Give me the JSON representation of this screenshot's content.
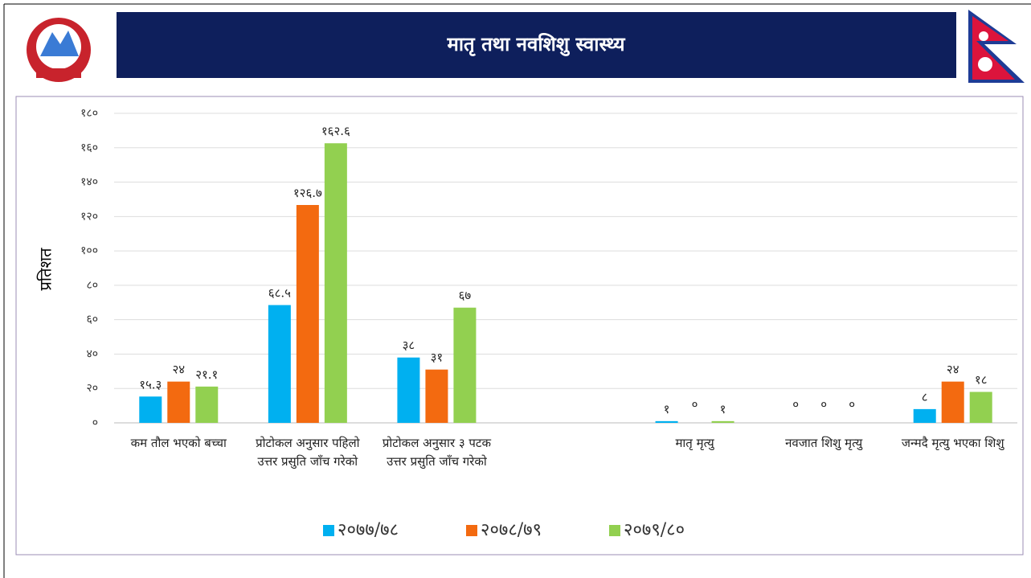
{
  "header": {
    "title": "मातृ तथा नवशिशु स्वास्थ्य"
  },
  "chart_data": {
    "type": "bar",
    "y_label": "प्रतिशत",
    "categories": [
      "कम तौल भएको बच्चा",
      "प्रोटोकल अनुसार पहिलो उत्तर प्रसुति जाँच गरेको",
      "प्रोटोकल अनुसार ३ पटक उत्तर प्रसुति जाँच गरेको",
      null,
      "मातृ मृत्यु",
      "नवजात शिशु मृत्यु",
      "जन्मदै मृत्यु भएका शिशु"
    ],
    "series": [
      {
        "name": "२०७७/७८",
        "color": "#00b0f0",
        "values": [
          15.3,
          68.5,
          38,
          null,
          1,
          0,
          8
        ],
        "value_labels": [
          "१५.३",
          "६८.५",
          "३८",
          null,
          "१",
          "०",
          "८"
        ]
      },
      {
        "name": "२०७८/७९",
        "color": "#f36a10",
        "values": [
          24,
          126.7,
          31,
          null,
          0,
          0,
          24
        ],
        "value_labels": [
          "२४",
          "१२६.७",
          "३१",
          null,
          "०",
          "०",
          "२४"
        ]
      },
      {
        "name": "२०७९/८०",
        "color": "#92d050",
        "values": [
          21.1,
          162.6,
          67,
          null,
          1,
          0,
          18
        ],
        "value_labels": [
          "२१.१",
          "१६२.६",
          "६७",
          null,
          "१",
          "०",
          "१८"
        ]
      }
    ],
    "ylim": [
      0,
      180
    ],
    "yticks": [
      {
        "value": 0,
        "label": "०"
      },
      {
        "value": 20,
        "label": "२०"
      },
      {
        "value": 40,
        "label": "४०"
      },
      {
        "value": 60,
        "label": "६०"
      },
      {
        "value": 80,
        "label": "८०"
      },
      {
        "value": 100,
        "label": "१००"
      },
      {
        "value": 120,
        "label": "१२०"
      },
      {
        "value": 140,
        "label": "१४०"
      },
      {
        "value": 160,
        "label": "१६०"
      },
      {
        "value": 180,
        "label": "१८०"
      }
    ],
    "grid": true,
    "legend": "bottom"
  }
}
